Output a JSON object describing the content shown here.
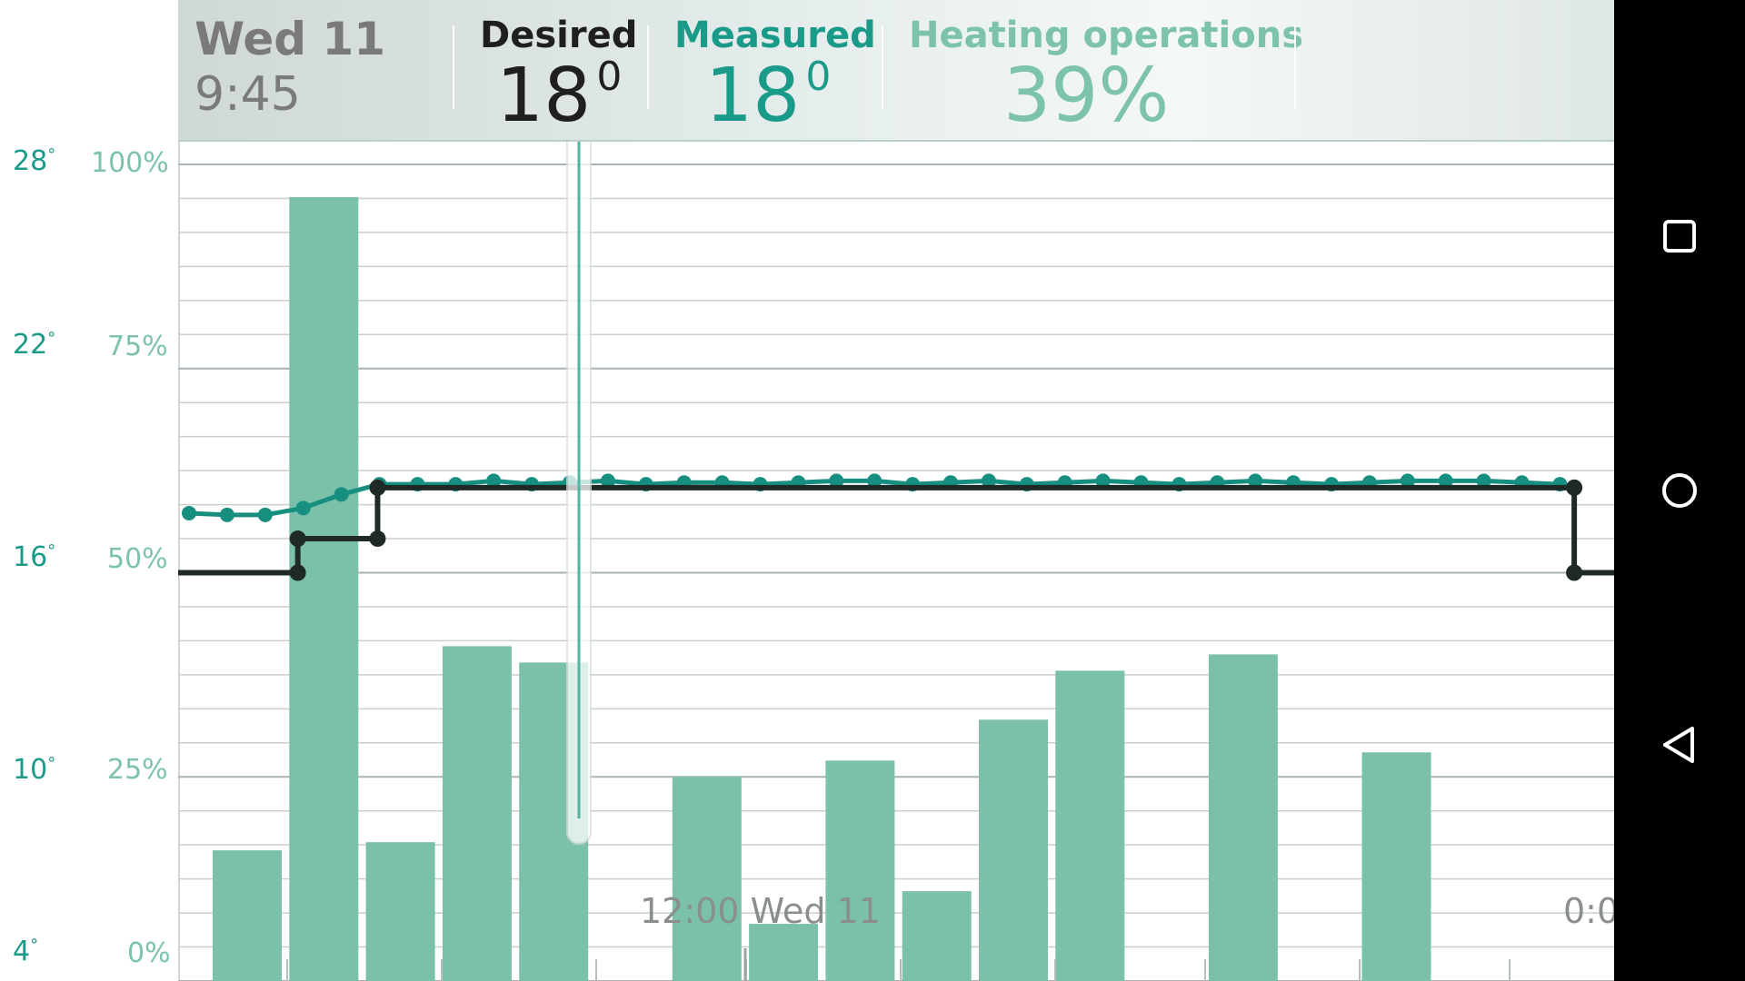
{
  "header": {
    "day": "Wed 11",
    "time": "9:45",
    "desired_label": "Desired",
    "desired_value": "18",
    "measured_label": "Measured",
    "measured_value": "18",
    "heating_label": "Heating operations",
    "heating_value": "39%",
    "degree_mark": "0",
    "desired_color": "#1f1f1f",
    "measured_color": "#1a9a88",
    "heating_color": "#7cc2ac"
  },
  "left_axis": {
    "temperature_ticks": [
      {
        "label": "28",
        "value": 28
      },
      {
        "label": "22",
        "value": 22
      },
      {
        "label": "16",
        "value": 16
      },
      {
        "label": "10",
        "value": 10
      },
      {
        "label": "4",
        "value": 4
      }
    ],
    "percent_ticks": [
      {
        "label": "100%",
        "value": 100
      },
      {
        "label": "75%",
        "value": 75
      },
      {
        "label": "50%",
        "value": 50
      },
      {
        "label": "25%",
        "value": 25
      },
      {
        "label": "0%",
        "value": 0
      }
    ],
    "degree_symbol": "°"
  },
  "chart_data": {
    "type": "bar",
    "grid": true,
    "ylim_percent": [
      0,
      100
    ],
    "ylim_temperature": [
      4,
      28
    ],
    "x_tick_labels": [
      "12:00 Wed 11",
      "0:0"
    ],
    "bar_values_percent": [
      16,
      96,
      17,
      41,
      39,
      0,
      25,
      7,
      27,
      11,
      32,
      38,
      0,
      40,
      0,
      28,
      0,
      0
    ],
    "bars": [
      {
        "name": "Heating operations",
        "color": "#7bc1aa"
      }
    ],
    "measured_temperature": [
      17.75,
      17.7,
      17.7,
      17.9,
      18.3,
      18.6,
      18.6,
      18.6,
      18.7,
      18.6,
      18.65,
      18.7,
      18.6,
      18.65,
      18.65,
      18.6,
      18.65,
      18.7,
      18.7,
      18.6,
      18.65,
      18.7,
      18.6,
      18.65,
      18.7,
      18.65,
      18.6,
      18.65,
      18.7,
      18.65,
      18.6,
      18.65,
      18.7,
      18.7,
      18.7,
      18.65,
      18.6
    ],
    "desired_temperature": [
      16.0,
      16.0,
      16.0,
      17.0,
      17.0,
      18.5,
      18.5,
      18.5,
      18.5,
      18.5,
      18.5,
      18.5,
      18.5,
      18.5,
      18.5,
      18.5,
      18.5,
      18.5,
      18.5,
      18.5,
      18.5,
      18.5,
      18.5,
      18.5,
      18.5,
      18.5,
      18.5,
      18.5,
      18.5,
      18.5,
      18.5,
      18.5,
      18.5,
      18.5,
      18.5,
      16.0,
      16.0
    ],
    "measured_color": "#178f80",
    "desired_color": "#1f2a28",
    "cursor_label": "9:45"
  },
  "nav": {
    "recents_icon": "square-icon",
    "home_icon": "circle-icon",
    "back_icon": "triangle-back-icon"
  }
}
